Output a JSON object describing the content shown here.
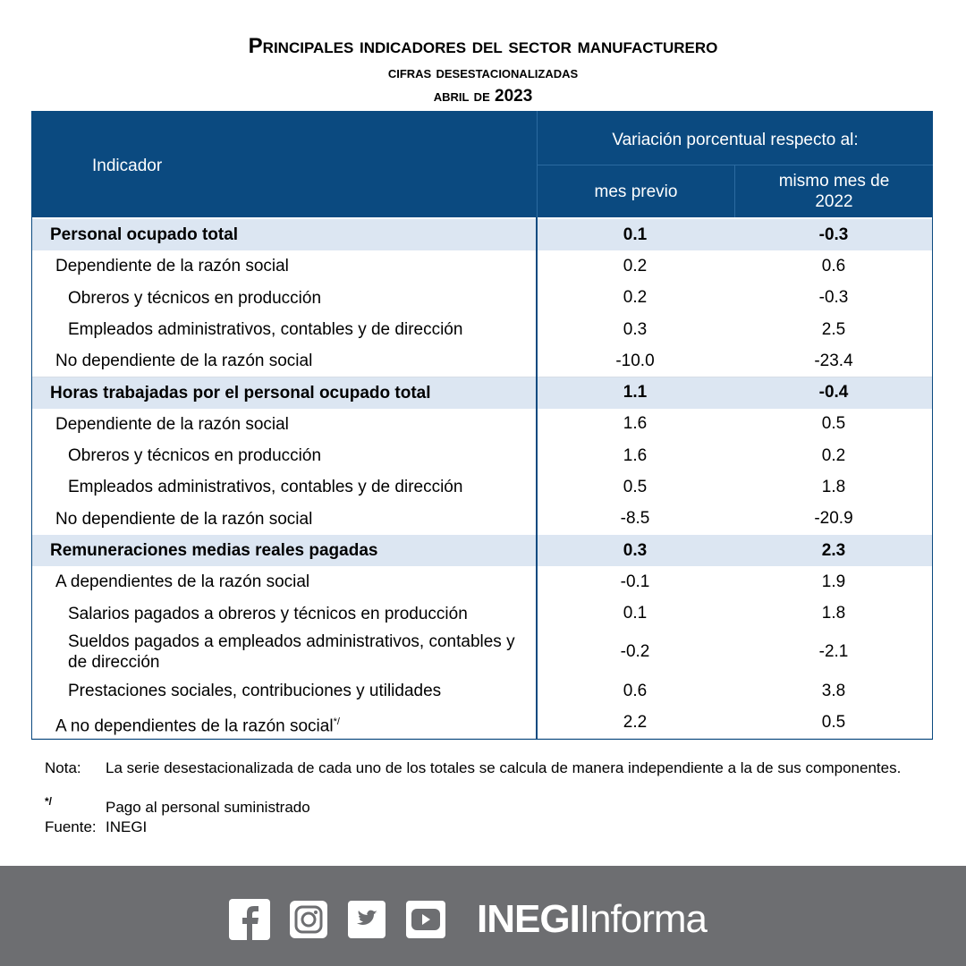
{
  "header": {
    "title": "Principales indicadores del sector manufacturero",
    "subtitle": "cifras desestacionalizadas",
    "period": "abril de 2023"
  },
  "table": {
    "columns": {
      "indicator": "Indicador",
      "group": "Variación porcentual respecto al:",
      "previous": "mes previo",
      "year_ago": "mismo mes de 2022"
    },
    "rows": [
      {
        "label": "Personal ocupado total",
        "level": 0,
        "previous": "0.1",
        "year_ago": "-0.3"
      },
      {
        "label": "Dependiente de la razón social",
        "level": 1,
        "previous": "0.2",
        "year_ago": "0.6"
      },
      {
        "label": "Obreros y técnicos en producción",
        "level": 2,
        "previous": "0.2",
        "year_ago": "-0.3"
      },
      {
        "label": "Empleados administrativos, contables y de dirección",
        "level": 2,
        "previous": "0.3",
        "year_ago": "2.5"
      },
      {
        "label": "No dependiente de la razón social",
        "level": 1,
        "previous": "-10.0",
        "year_ago": "-23.4"
      },
      {
        "label": "Horas trabajadas por el personal ocupado total",
        "level": 0,
        "previous": "1.1",
        "year_ago": "-0.4"
      },
      {
        "label": "Dependiente de la razón social",
        "level": 1,
        "previous": "1.6",
        "year_ago": "0.5"
      },
      {
        "label": "Obreros y técnicos en producción",
        "level": 2,
        "previous": "1.6",
        "year_ago": "0.2"
      },
      {
        "label": "Empleados administrativos, contables y de dirección",
        "level": 2,
        "previous": "0.5",
        "year_ago": "1.8"
      },
      {
        "label": "No dependiente de la razón social",
        "level": 1,
        "previous": "-8.5",
        "year_ago": "-20.9"
      },
      {
        "label": "Remuneraciones medias reales pagadas",
        "level": 0,
        "previous": "0.3",
        "year_ago": "2.3"
      },
      {
        "label": "A dependientes de la razón social",
        "level": 1,
        "previous": "-0.1",
        "year_ago": "1.9"
      },
      {
        "label": "Salarios pagados a obreros y técnicos en producción",
        "level": 2,
        "previous": "0.1",
        "year_ago": "1.8"
      },
      {
        "label": "Sueldos pagados a empleados administrativos, contables y de dirección",
        "level": 2,
        "previous": "-0.2",
        "year_ago": "-2.1"
      },
      {
        "label": "Prestaciones sociales, contribuciones y utilidades",
        "level": 2,
        "previous": "0.6",
        "year_ago": "3.8"
      },
      {
        "label": "A no dependientes de la razón social*/",
        "level": 1,
        "previous": "2.2",
        "year_ago": "0.5"
      }
    ]
  },
  "notes": {
    "note_label": "Nota:",
    "note_text": "La serie desestacionalizada de cada uno de los totales se calcula de manera independiente a la de sus componentes.",
    "mark": "*/",
    "mark_text": "Pago al personal suministrado",
    "source_label": "Fuente:",
    "source": "INEGI"
  },
  "footer": {
    "brand_bold": "INEGI",
    "brand_light": "Informa"
  }
}
